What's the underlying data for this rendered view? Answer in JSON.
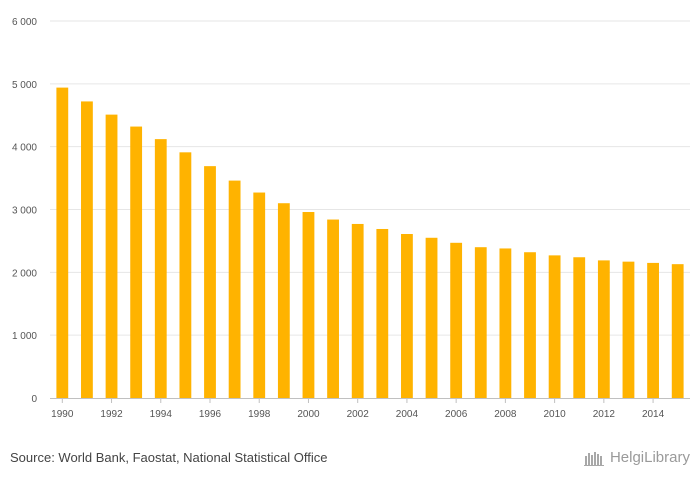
{
  "chart_data": {
    "type": "bar",
    "categories": [
      "1990",
      "1991",
      "1992",
      "1993",
      "1994",
      "1995",
      "1996",
      "1997",
      "1998",
      "1999",
      "2000",
      "2001",
      "2002",
      "2003",
      "2004",
      "2005",
      "2006",
      "2007",
      "2008",
      "2009",
      "2010",
      "2011",
      "2012",
      "2013",
      "2014",
      "2015"
    ],
    "values": [
      4940,
      4720,
      4510,
      4320,
      4120,
      3910,
      3690,
      3460,
      3270,
      3100,
      2960,
      2840,
      2770,
      2690,
      2610,
      2550,
      2470,
      2400,
      2380,
      2320,
      2270,
      2240,
      2190,
      2170,
      2150,
      2130
    ],
    "ylim": [
      0,
      6000
    ],
    "yticks": [
      0,
      1000,
      2000,
      3000,
      4000,
      5000,
      6000
    ],
    "ytick_labels": [
      "0",
      "1 000",
      "2 000",
      "3 000",
      "4 000",
      "5 000",
      "6 000"
    ],
    "xtick_labels": [
      "1990",
      "1992",
      "1994",
      "1996",
      "1998",
      "2000",
      "2002",
      "2004",
      "2006",
      "2008",
      "2010",
      "2012",
      "2014"
    ],
    "grid": true,
    "bar_color": "#FFB300",
    "grid_color": "#e6e6e6"
  },
  "footer": {
    "source": "Source: World Bank, Faostat, National Statistical Office",
    "brand": "HelgiLibrary"
  }
}
